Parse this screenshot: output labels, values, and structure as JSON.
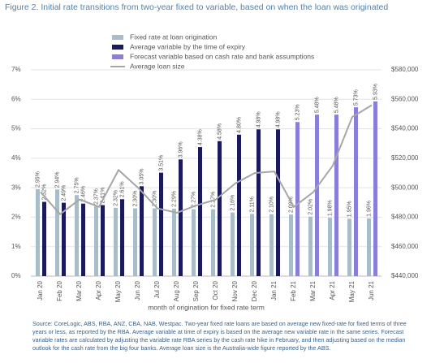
{
  "chart_data": {
    "type": "bar",
    "title": "Figure 2. Initial rate transitions from two-year fixed to variable, based on when the loan was originated",
    "x_label": "month of origination for fixed rate term",
    "source": "Source: CoreLogic, ABS, RBA, ANZ, CBA, NAB, Westpac. Two-year fixed rate loans are based on average new fixed-rate for fixed terms of three years or less, as reported by the RBA. Average variable at time of expiry is based on the average new variable rate in the same series. Forecast variable rates are calculated by adjusting the variable rate RBA series by the cash rate hike in February, and then adjusting based on the median outlook for the cash rate from the big four banks. Average loan size is the Australia-wide figure reported by the ABS.",
    "categories": [
      "Jan 20",
      "Feb 20",
      "Mar 20",
      "Apr 20",
      "May 20",
      "Jun 20",
      "Jul 20",
      "Aug 20",
      "Sep 20",
      "Oct 20",
      "Nov 20",
      "Dec 20",
      "Jan 21",
      "Feb 21",
      "Mar 21",
      "Apr 21",
      "May 21",
      "Jun 21"
    ],
    "series": [
      {
        "name": "Fixed rate at loan origination",
        "color": "#a9bdc9",
        "values": [
          2.95,
          2.94,
          2.75,
          2.37,
          2.32,
          2.3,
          2.3,
          2.29,
          2.27,
          2.27,
          2.16,
          2.11,
          2.1,
          2.09,
          2.02,
          1.98,
          1.95,
          1.96
        ],
        "value_labels": [
          "2.95%",
          "2.94%",
          "2.75%",
          "2.37%",
          "2.32%",
          "2.30%",
          "2.30%",
          "2.29%",
          "2.27%",
          "2.27%",
          "2.16%",
          "2.11%",
          "2.10%",
          "2.09%",
          "2.02%",
          "1.98%",
          "1.95%",
          "1.96%"
        ]
      },
      {
        "name": "Average variable by the time of expiry",
        "color": "#1b1a5c",
        "values": [
          2.52,
          2.49,
          2.46,
          2.41,
          2.61,
          3.05,
          3.51,
          3.96,
          4.38,
          4.58,
          4.8,
          4.98,
          4.98,
          null,
          null,
          null,
          null,
          null
        ],
        "value_labels": [
          "2.52%",
          "2.49%",
          "2.46%",
          "2.41%",
          "2.61%",
          "3.05%",
          "3.51%",
          "3.96%",
          "4.38%",
          "4.58%",
          "4.80%",
          "4.98%",
          "4.98%",
          null,
          null,
          null,
          null,
          null
        ]
      },
      {
        "name": "Forecast variable based on cash rate and bank assumptions",
        "color": "#8a7fd8",
        "values": [
          null,
          null,
          null,
          null,
          null,
          null,
          null,
          null,
          null,
          null,
          null,
          null,
          null,
          5.23,
          5.48,
          5.48,
          5.73,
          5.93
        ],
        "value_labels": [
          null,
          null,
          null,
          null,
          null,
          null,
          null,
          null,
          null,
          null,
          null,
          null,
          null,
          "5.23%",
          "5.48%",
          "5.48%",
          "5.73%",
          "5.93%"
        ]
      },
      {
        "name": "Average loan size",
        "color": "#a6a6a6",
        "axis": "y2",
        "line": true,
        "values": [
          497000,
          482000,
          492000,
          487000,
          512000,
          500000,
          486000,
          483000,
          488000,
          492000,
          503000,
          510000,
          511000,
          487000,
          497000,
          515000,
          548000,
          556000
        ]
      }
    ],
    "ylim": [
      0,
      7
    ],
    "yticks": [
      {
        "value": 0,
        "label": "0%"
      },
      {
        "value": 1,
        "label": "1%"
      },
      {
        "value": 2,
        "label": "2%"
      },
      {
        "value": 3,
        "label": "3%"
      },
      {
        "value": 4,
        "label": "4%"
      },
      {
        "value": 5,
        "label": "5%"
      },
      {
        "value": 6,
        "label": "6%"
      },
      {
        "value": 7,
        "label": "7%"
      }
    ],
    "y2lim": [
      440000,
      580000
    ],
    "y2ticks": [
      {
        "value": 440000,
        "label": "$440,000"
      },
      {
        "value": 460000,
        "label": "$460,000"
      },
      {
        "value": 480000,
        "label": "$480,000"
      },
      {
        "value": 500000,
        "label": "$500,000"
      },
      {
        "value": 520000,
        "label": "$520,000"
      },
      {
        "value": 540000,
        "label": "$540,000"
      },
      {
        "value": 560000,
        "label": "$560,000"
      },
      {
        "value": 580000,
        "label": "$580,000"
      }
    ],
    "grid": true
  }
}
